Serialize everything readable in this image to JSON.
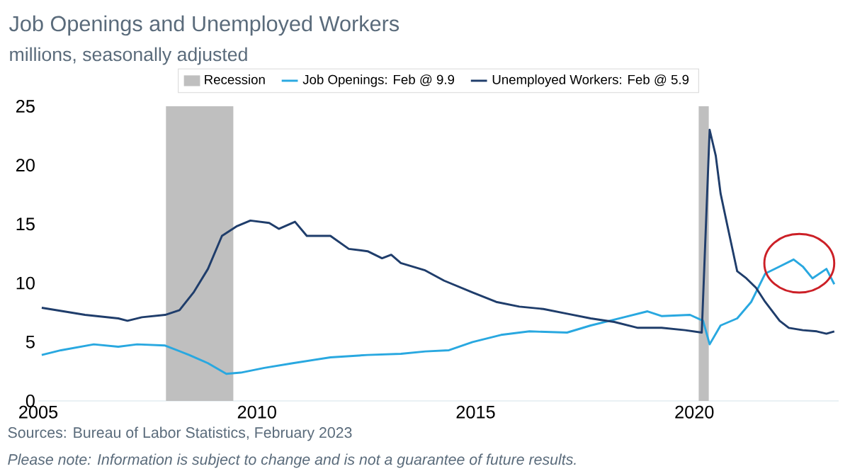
{
  "chart_data": {
    "type": "line",
    "title": "Job Openings and Unemployed Workers",
    "subtitle": "millions, seasonally adjusted",
    "xlim": [
      2005,
      2023.3
    ],
    "xticks": [
      2005,
      2010,
      2015,
      2020
    ],
    "ylim": [
      0,
      25
    ],
    "yticks": [
      0,
      5,
      10,
      15,
      20,
      25
    ],
    "legend": "top",
    "bands": [
      {
        "axis": "x",
        "from": 2007.92,
        "to": 2009.46,
        "label": "Recession",
        "color": "#bfbfbf"
      },
      {
        "axis": "x",
        "from": 2020.1,
        "to": 2020.33,
        "color": "#bfbfbf"
      }
    ],
    "series": [
      {
        "name": "Job Openings: Feb @ 9.9",
        "color": "#29a8e0",
        "x": [
          2005.08,
          2005.52,
          2006.27,
          2006.83,
          2007.26,
          2007.9,
          2008.45,
          2008.88,
          2009.3,
          2009.63,
          2010.17,
          2010.82,
          2011.68,
          2012.53,
          2013.29,
          2013.85,
          2014.39,
          2014.93,
          2015.58,
          2016.23,
          2017.09,
          2017.63,
          2018.39,
          2018.93,
          2019.25,
          2019.9,
          2020.2,
          2020.35,
          2020.6,
          2020.98,
          2021.3,
          2021.62,
          2021.95,
          2022.27,
          2022.48,
          2022.7,
          2023.02,
          2023.2
        ],
        "values": [
          3.9,
          4.3,
          4.8,
          4.6,
          4.8,
          4.7,
          3.9,
          3.2,
          2.3,
          2.4,
          2.8,
          3.2,
          3.7,
          3.9,
          4.0,
          4.2,
          4.3,
          5.0,
          5.6,
          5.9,
          5.8,
          6.4,
          7.1,
          7.6,
          7.2,
          7.3,
          6.8,
          4.8,
          6.4,
          7.0,
          8.4,
          10.8,
          11.4,
          12.0,
          11.4,
          10.4,
          11.2,
          9.9
        ]
      },
      {
        "name": "Unemployed Workers: Feb @ 5.9",
        "color": "#1f3d6b",
        "x": [
          2005.08,
          2005.75,
          2006.07,
          2006.83,
          2007.04,
          2007.37,
          2007.9,
          2008.23,
          2008.55,
          2008.88,
          2009.2,
          2009.53,
          2009.85,
          2010.28,
          2010.5,
          2010.87,
          2011.14,
          2011.68,
          2012.1,
          2012.53,
          2012.86,
          2013.07,
          2013.29,
          2013.83,
          2014.28,
          2014.93,
          2015.47,
          2016.0,
          2016.55,
          2017.09,
          2017.63,
          2018.17,
          2018.71,
          2019.25,
          2019.79,
          2020.17,
          2020.35,
          2020.49,
          2020.6,
          2020.76,
          2020.98,
          2021.19,
          2021.41,
          2021.62,
          2021.95,
          2022.16,
          2022.48,
          2022.8,
          2023.02,
          2023.2
        ],
        "values": [
          7.9,
          7.5,
          7.3,
          7.0,
          6.8,
          7.1,
          7.3,
          7.7,
          9.2,
          11.2,
          14.0,
          14.8,
          15.3,
          15.1,
          14.6,
          15.2,
          14.0,
          14.0,
          12.9,
          12.7,
          12.1,
          12.4,
          11.7,
          11.1,
          10.2,
          9.2,
          8.4,
          8.0,
          7.8,
          7.4,
          7.0,
          6.7,
          6.2,
          6.2,
          6.0,
          5.8,
          23.0,
          20.8,
          17.6,
          14.8,
          11.0,
          10.4,
          9.6,
          8.4,
          6.8,
          6.2,
          6.0,
          5.9,
          5.7,
          5.9
        ]
      }
    ],
    "annotations": [
      "Sources: Bureau of Labor Statistics, February 2023",
      "Please note: Information is subject to change and is not a guarantee of future results."
    ]
  }
}
